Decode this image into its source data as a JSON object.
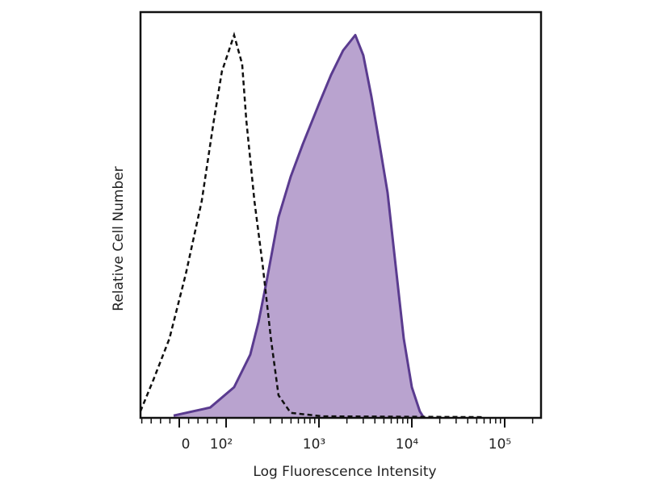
{
  "chart_data": {
    "type": "area",
    "title": "",
    "xlabel": "Log Fluorescence Intensity",
    "ylabel": "Relative Cell Number",
    "x_scale": "biexponential (linear near 0, log above 10^2)",
    "xlim": [
      -85,
      200000
    ],
    "ylim": [
      0,
      106
    ],
    "grid": false,
    "x_ticks": [
      {
        "value": 0,
        "label": "0"
      },
      {
        "value": 100,
        "label": "10²"
      },
      {
        "value": 1000,
        "label": "10³"
      },
      {
        "value": 10000,
        "label": "10⁴"
      },
      {
        "value": 100000,
        "label": "10⁵"
      }
    ],
    "series": [
      {
        "style": "filled",
        "fill": "#b9a3cf",
        "stroke": "#5a3b8f",
        "x": [
          -12,
          66,
          122,
          182,
          223,
          272,
          367,
          496,
          670,
          1000,
          1350,
          1820,
          2460,
          3000,
          3670,
          4490,
          5480,
          6700,
          8190,
          10000,
          12200,
          13500
        ],
        "y": [
          0.6,
          2.7,
          8,
          16.5,
          25,
          35.5,
          52.4,
          63,
          71.5,
          82,
          89.6,
          96,
          100,
          94.7,
          84,
          71.5,
          58.8,
          39.7,
          20.7,
          8,
          1.7,
          0
        ]
      },
      {
        "style": "dashed",
        "stroke": "#111111",
        "x": [
          -83,
          -55,
          -21,
          14,
          48,
          74,
          91,
          122,
          149,
          165,
          202,
          248,
          304,
          367,
          496,
          1100,
          60000
        ],
        "y": [
          1.7,
          10,
          20.7,
          37.6,
          56.6,
          77.8,
          90.5,
          100,
          92.4,
          77.8,
          56.6,
          39.7,
          20.7,
          5.9,
          1.3,
          0.4,
          0.2
        ]
      }
    ]
  }
}
